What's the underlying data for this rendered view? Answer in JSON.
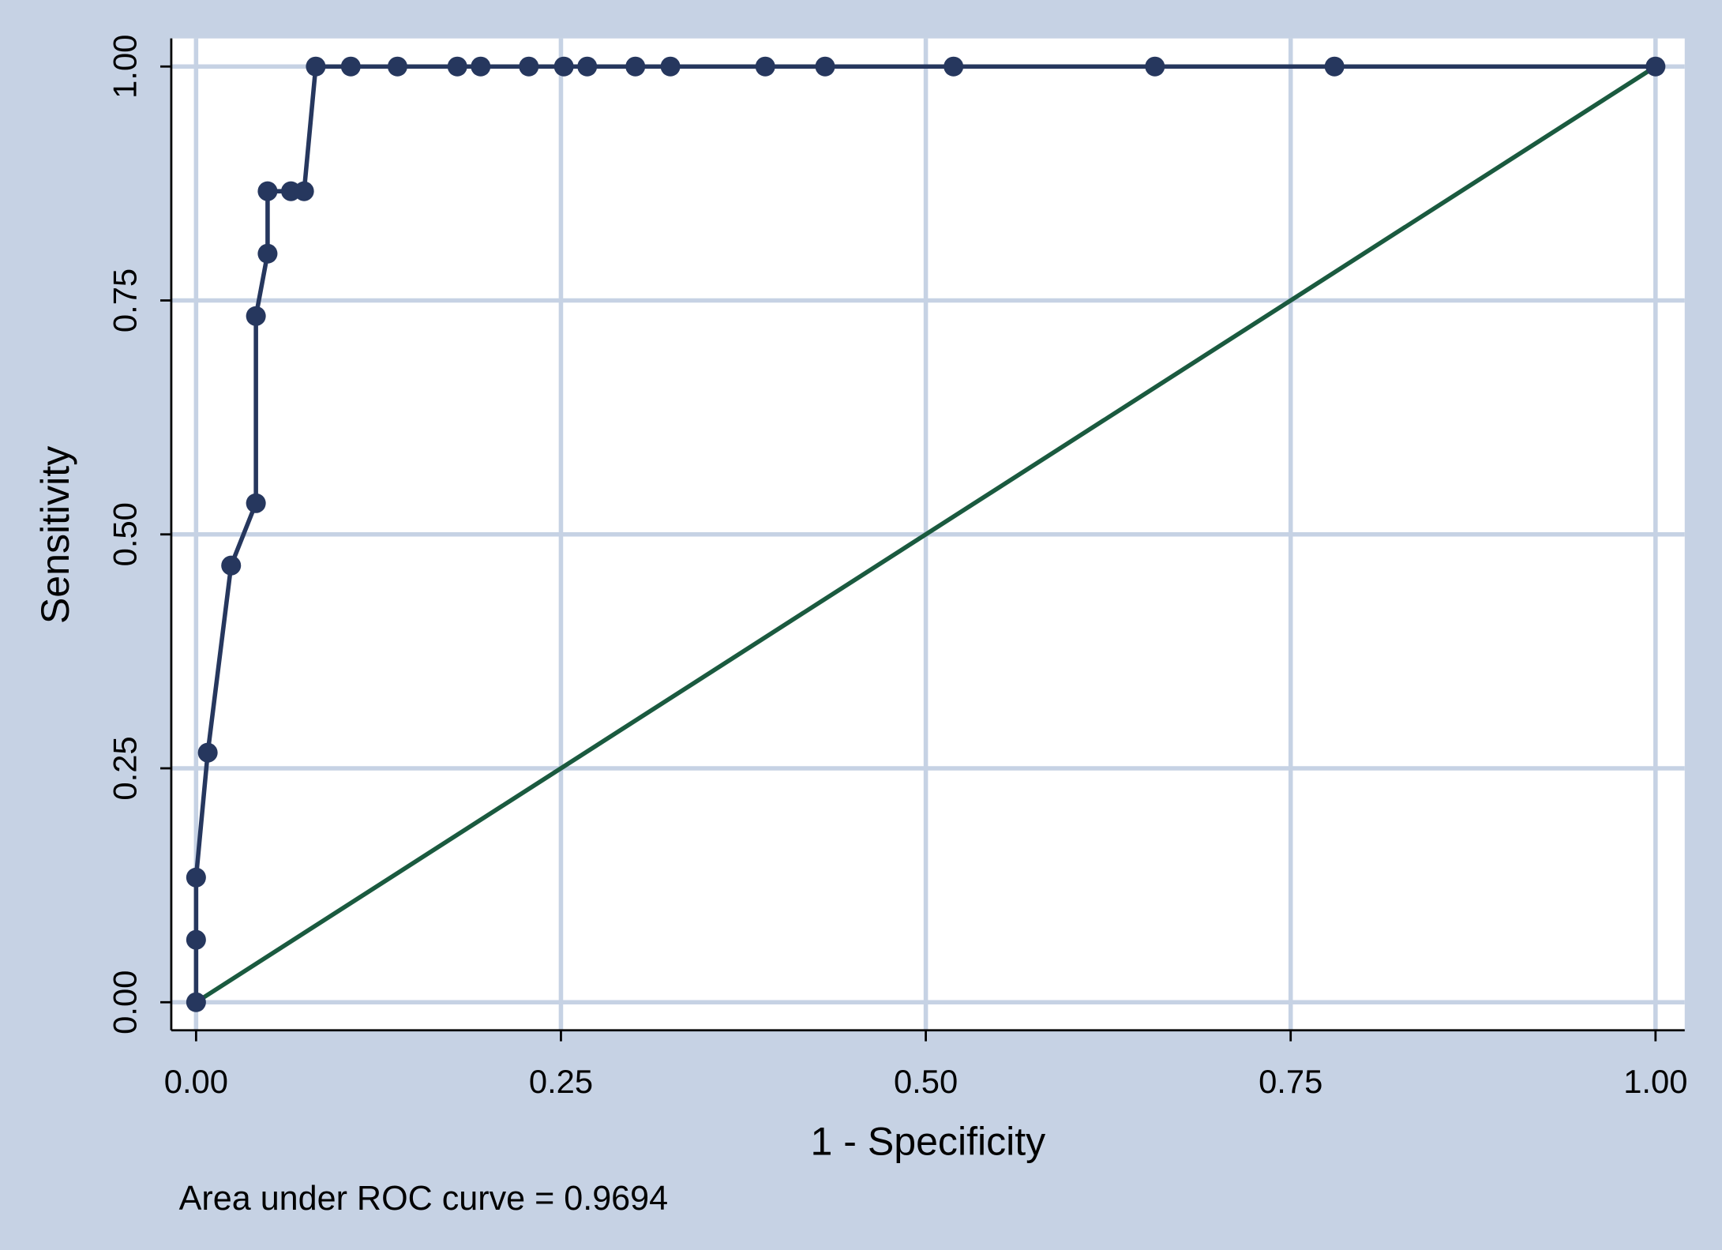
{
  "chart_data": {
    "type": "line",
    "xlabel": "1 - Specificity",
    "ylabel": "Sensitivity",
    "annotation": "Area under ROC curve = 0.9694",
    "xlim": [
      -0.017,
      1.02
    ],
    "ylim": [
      -0.03,
      1.03
    ],
    "xticks": [
      {
        "value": 0,
        "label": "0.00"
      },
      {
        "value": 0.25,
        "label": "0.25"
      },
      {
        "value": 0.5,
        "label": "0.50"
      },
      {
        "value": 0.75,
        "label": "0.75"
      },
      {
        "value": 1,
        "label": "1.00"
      }
    ],
    "yticks": [
      {
        "value": 0,
        "label": "0.00"
      },
      {
        "value": 0.25,
        "label": "0.25"
      },
      {
        "value": 0.5,
        "label": "0.50"
      },
      {
        "value": 0.75,
        "label": "0.75"
      },
      {
        "value": 1,
        "label": "1.00"
      }
    ],
    "grid": true,
    "series": [
      {
        "color": "#26375e",
        "x": [
          0,
          0,
          0,
          0.008,
          0.024,
          0.041,
          0.041,
          0.049,
          0.049,
          0.065,
          0.074,
          0.082,
          0.106,
          0.138,
          0.179,
          0.195,
          0.228,
          0.252,
          0.268,
          0.301,
          0.325,
          0.39,
          0.431,
          0.519,
          0.657,
          0.78,
          1
        ],
        "values": [
          0,
          0.0667,
          0.1333,
          0.2667,
          0.4667,
          0.5333,
          0.7333,
          0.8,
          0.8667,
          0.8667,
          0.8667,
          1,
          1,
          1,
          1,
          1,
          1,
          1,
          1,
          1,
          1,
          1,
          1,
          1,
          1,
          1,
          1
        ]
      }
    ],
    "reference_line": {
      "color": "#1a5a3f",
      "x": [
        0,
        1
      ],
      "values": [
        0,
        1
      ]
    }
  }
}
